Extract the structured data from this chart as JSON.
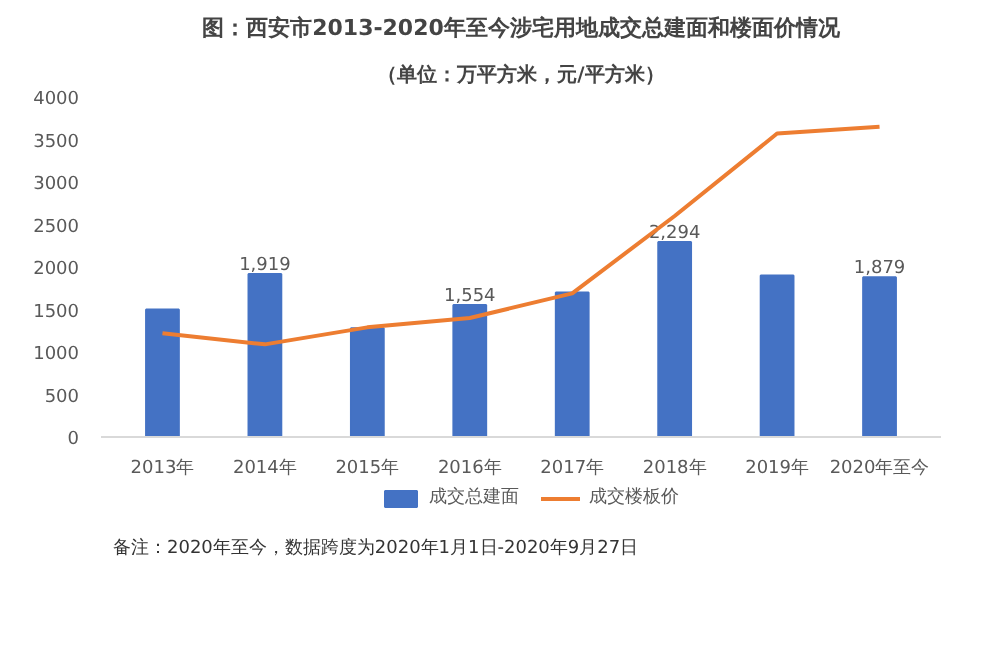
{
  "chart_data": {
    "type": "bar",
    "title": "图：西安市2013-2020年至今涉宅用地成交总建面和楼面价情况",
    "subtitle": "（单位：万平方米，元/平方米）",
    "categories": [
      "2013年",
      "2014年",
      "2015年",
      "2016年",
      "2017年",
      "2018年",
      "2019年",
      "2020年至今"
    ],
    "series": [
      {
        "name": "成交总建面",
        "color": "#4472c4",
        "values": [
          1500,
          1919,
          1280,
          1554,
          1700,
          2294,
          1900,
          1879
        ],
        "value_labels": [
          null,
          "1,919",
          null,
          "1,554",
          null,
          "2,294",
          null,
          "1,879"
        ]
      },
      {
        "name": "成交楼板价",
        "type": "line",
        "color": "#ed7d31",
        "values": [
          1220,
          1090,
          1290,
          1400,
          1690,
          2600,
          3570,
          3650
        ]
      }
    ],
    "ylim": [
      0,
      4000
    ],
    "yticks": [
      0,
      500,
      1000,
      1500,
      2000,
      2500,
      3000,
      3500,
      4000
    ],
    "grid": false,
    "legend": "bottom",
    "marker": "none",
    "line_style": "solid",
    "annotations": [
      "备注：2020年至今，数据跨度为2020年1月1日-2020年9月27日"
    ]
  }
}
